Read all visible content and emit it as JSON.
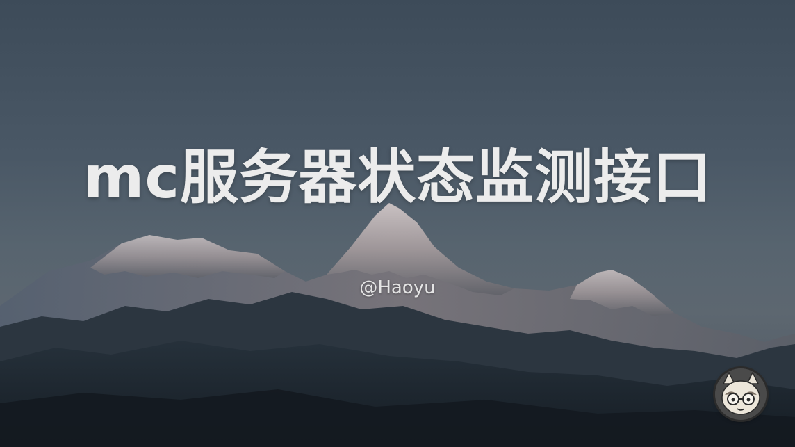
{
  "slide": {
    "title": "mc服务器状态监测接口",
    "author": "@Haoyu"
  },
  "background": {
    "icon": "mountain-landscape-icon",
    "sky_color": "#4a5866",
    "mountain_color": "#1f2830",
    "snow_color": "#c9c4c4",
    "title_color": "#ececec"
  },
  "avatar": {
    "icon": "cat-avatar-icon"
  }
}
